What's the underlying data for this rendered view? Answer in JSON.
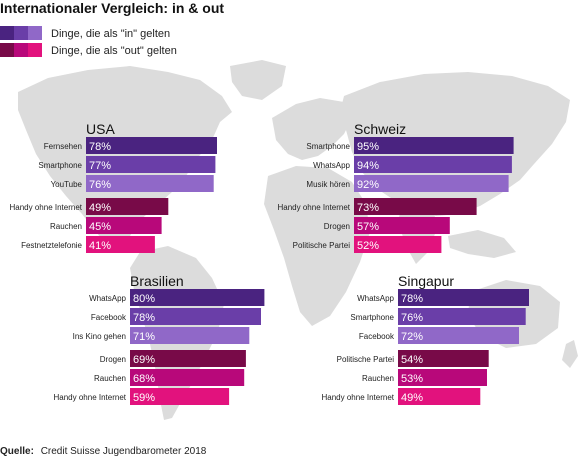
{
  "title": "Internationaler Vergleich: in & out",
  "legend": {
    "in_label": "Dinge, die als \"in\" gelten",
    "out_label": "Dinge, die als \"out\" gelten"
  },
  "colors": {
    "in": [
      "#4a2380",
      "#6a3ea8",
      "#9068c8"
    ],
    "out": [
      "#780a48",
      "#b8087a",
      "#e2127d"
    ],
    "map": "#dcdcdc",
    "background": "#ffffff"
  },
  "source": {
    "prefix": "Quelle:",
    "text": "Credit Suisse Jugendbarometer 2018"
  },
  "chart_data": [
    {
      "type": "bar",
      "title": "USA",
      "categories": [
        "Fernsehen",
        "Smartphone",
        "YouTube",
        "Handy ohne Internet",
        "Rauchen",
        "Festnetztelefonie"
      ],
      "values": [
        78,
        77,
        76,
        49,
        45,
        41
      ],
      "value_labels": [
        "78%",
        "77%",
        "76%",
        "49%",
        "45%",
        "41%"
      ],
      "groups": [
        "in",
        "in",
        "in",
        "out",
        "out",
        "out"
      ],
      "ylim": [
        0,
        100
      ],
      "grid": false
    },
    {
      "type": "bar",
      "title": "Schweiz",
      "categories": [
        "Smartphone",
        "WhatsApp",
        "Musik hören",
        "Handy ohne Internet",
        "Drogen",
        "Politische Partei"
      ],
      "values": [
        95,
        94,
        92,
        73,
        57,
        52
      ],
      "value_labels": [
        "95%",
        "94%",
        "92%",
        "73%",
        "57%",
        "52%"
      ],
      "groups": [
        "in",
        "in",
        "in",
        "out",
        "out",
        "out"
      ],
      "ylim": [
        0,
        100
      ],
      "grid": false
    },
    {
      "type": "bar",
      "title": "Brasilien",
      "categories": [
        "WhatsApp",
        "Facebook",
        "Ins Kino gehen",
        "Drogen",
        "Rauchen",
        "Handy ohne Internet"
      ],
      "values": [
        80,
        78,
        71,
        69,
        68,
        59
      ],
      "value_labels": [
        "80%",
        "78%",
        "71%",
        "69%",
        "68%",
        "59%"
      ],
      "groups": [
        "in",
        "in",
        "in",
        "out",
        "out",
        "out"
      ],
      "ylim": [
        0,
        100
      ],
      "grid": false
    },
    {
      "type": "bar",
      "title": "Singapur",
      "categories": [
        "WhatsApp",
        "Smartphone",
        "Facebook",
        "Politische Partei",
        "Rauchen",
        "Handy ohne Internet"
      ],
      "values": [
        78,
        76,
        72,
        54,
        53,
        49
      ],
      "value_labels": [
        "78%",
        "76%",
        "72%",
        "54%",
        "53%",
        "49%"
      ],
      "groups": [
        "in",
        "in",
        "in",
        "out",
        "out",
        "out"
      ],
      "ylim": [
        0,
        100
      ],
      "grid": false
    }
  ]
}
